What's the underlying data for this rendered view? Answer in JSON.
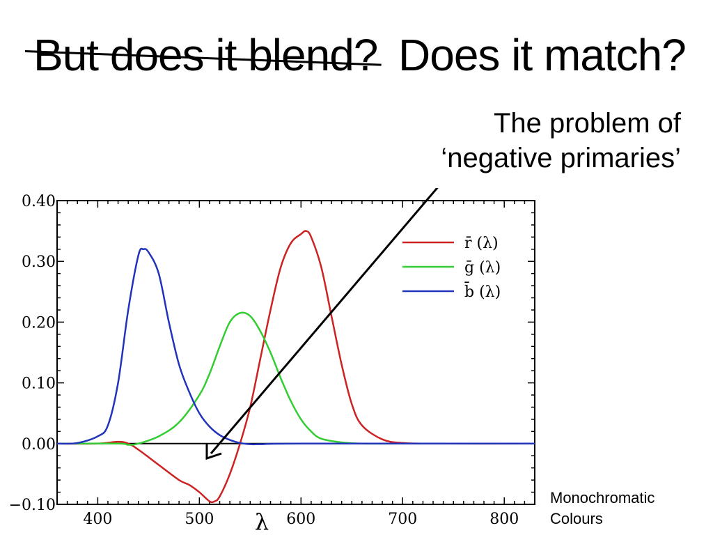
{
  "slide": {
    "title_struck": "But does it blend?",
    "title_main": "Does it match?",
    "callout_line1": "The problem of",
    "callout_line2": "‘negative primaries’",
    "side_note_line1": "Monochromatic",
    "side_note_line2": "Colours"
  },
  "chart_data": {
    "type": "line",
    "title": "",
    "xlabel": "λ",
    "ylabel": "",
    "xlim": [
      360,
      830
    ],
    "ylim": [
      -0.1,
      0.4
    ],
    "x_ticks": [
      "400",
      "500",
      "600",
      "700",
      "800"
    ],
    "y_ticks": [
      "0.40",
      "0.30",
      "0.20",
      "0.10",
      "0.00",
      "−0.10"
    ],
    "legend_position": "top-right",
    "series": [
      {
        "name": "r̄ (λ)",
        "color": "#cc2222",
        "x": [
          360,
          400,
          420,
          430,
          440,
          460,
          480,
          490,
          500,
          510,
          515,
          520,
          530,
          540,
          550,
          560,
          570,
          580,
          590,
          600,
          605,
          610,
          620,
          630,
          640,
          650,
          660,
          680,
          700,
          730,
          830
        ],
        "y": [
          0.0,
          0.0,
          0.003,
          0.0,
          -0.01,
          -0.035,
          -0.06,
          -0.068,
          -0.08,
          -0.095,
          -0.095,
          -0.087,
          -0.05,
          0.0,
          0.06,
          0.14,
          0.22,
          0.29,
          0.33,
          0.345,
          0.35,
          0.34,
          0.29,
          0.21,
          0.13,
          0.065,
          0.03,
          0.007,
          0.001,
          0.0,
          0.0
        ]
      },
      {
        "name": "ḡ (λ)",
        "color": "#33cc33",
        "x": [
          360,
          420,
          430,
          440,
          460,
          480,
          500,
          510,
          520,
          530,
          540,
          550,
          560,
          570,
          580,
          590,
          600,
          610,
          620,
          640,
          660,
          700,
          830
        ],
        "y": [
          0.0,
          0.0,
          -0.002,
          0.0,
          0.012,
          0.035,
          0.08,
          0.115,
          0.16,
          0.2,
          0.215,
          0.21,
          0.185,
          0.15,
          0.108,
          0.07,
          0.04,
          0.02,
          0.008,
          0.002,
          0.0,
          0.0,
          0.0
        ]
      },
      {
        "name": "b̄ (λ)",
        "color": "#2233bb",
        "x": [
          360,
          380,
          400,
          410,
          420,
          430,
          440,
          445,
          450,
          460,
          470,
          480,
          490,
          500,
          510,
          520,
          530,
          540,
          550,
          560,
          600,
          830
        ],
        "y": [
          0.0,
          0.001,
          0.012,
          0.03,
          0.1,
          0.22,
          0.31,
          0.32,
          0.315,
          0.28,
          0.2,
          0.13,
          0.085,
          0.05,
          0.028,
          0.014,
          0.006,
          0.001,
          -0.001,
          -0.001,
          0.0,
          0.0
        ]
      }
    ]
  }
}
